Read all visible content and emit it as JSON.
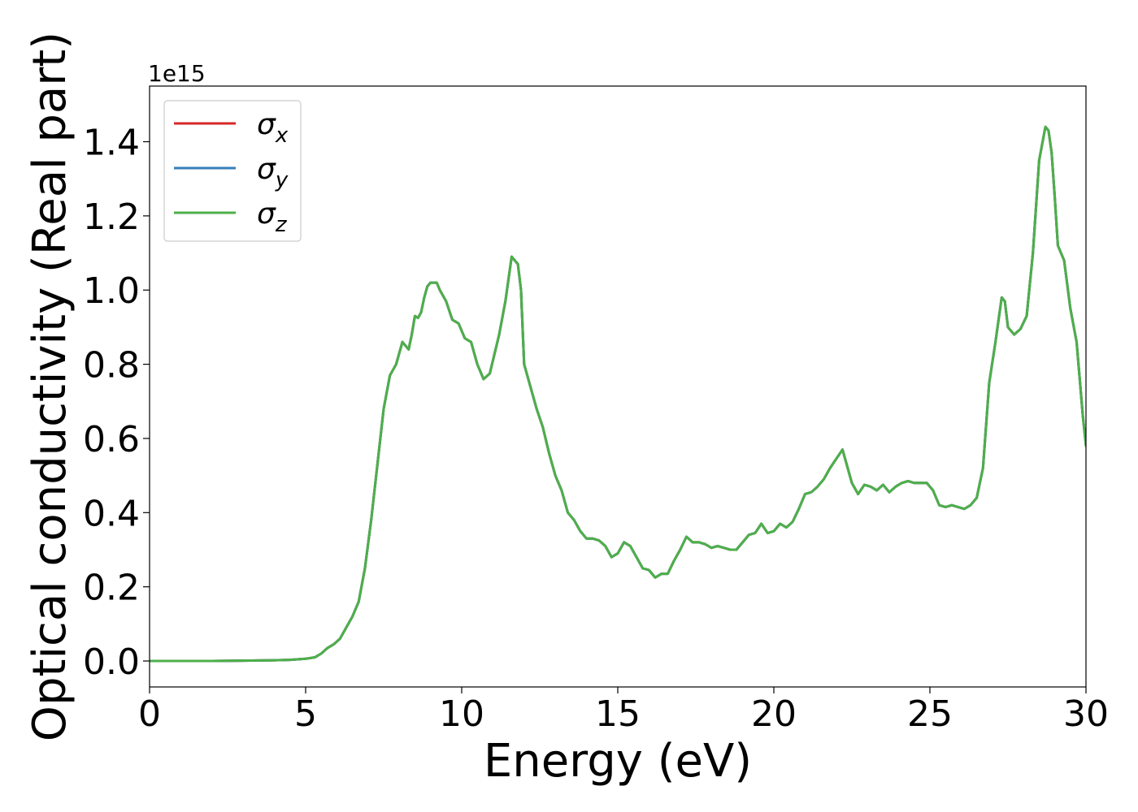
{
  "chart_data": {
    "type": "line",
    "title": "",
    "xlabel": "Energy (eV)",
    "ylabel": "Optical conductivity (Real part)",
    "y_offset_text": "1e15",
    "xlim": [
      0,
      30
    ],
    "ylim": [
      -0.07,
      1.55
    ],
    "xticks": [
      0,
      5,
      10,
      15,
      20,
      25,
      30
    ],
    "yticks": [
      0.0,
      0.2,
      0.4,
      0.6,
      0.8,
      1.0,
      1.2,
      1.4
    ],
    "x_tick_labels": [
      "0",
      "5",
      "10",
      "15",
      "20",
      "25",
      "30"
    ],
    "y_tick_labels": [
      "0.0",
      "0.2",
      "0.4",
      "0.6",
      "0.8",
      "1.0",
      "1.2",
      "1.4"
    ],
    "grid": false,
    "legend": {
      "position": "upper left",
      "entries": [
        {
          "symbol": "σ",
          "sub": "x",
          "color": "#d62728"
        },
        {
          "symbol": "σ",
          "sub": "y",
          "color": "#377eb8"
        },
        {
          "symbol": "σ",
          "sub": "z",
          "color": "#4daf4a"
        }
      ]
    },
    "x": [
      0,
      1,
      2,
      3,
      4,
      4.5,
      5,
      5.3,
      5.5,
      5.7,
      5.9,
      6.1,
      6.3,
      6.5,
      6.7,
      6.9,
      7.1,
      7.3,
      7.5,
      7.7,
      7.9,
      8.1,
      8.3,
      8.4,
      8.5,
      8.6,
      8.7,
      8.8,
      8.9,
      9.0,
      9.1,
      9.2,
      9.3,
      9.5,
      9.7,
      9.9,
      10.1,
      10.3,
      10.5,
      10.7,
      10.9,
      11.0,
      11.2,
      11.4,
      11.6,
      11.8,
      11.9,
      12.0,
      12.2,
      12.4,
      12.6,
      12.8,
      13.0,
      13.2,
      13.4,
      13.6,
      13.8,
      14.0,
      14.2,
      14.4,
      14.6,
      14.8,
      15.0,
      15.2,
      15.4,
      15.6,
      15.8,
      16.0,
      16.2,
      16.4,
      16.6,
      16.8,
      17.0,
      17.2,
      17.4,
      17.6,
      17.8,
      18.0,
      18.2,
      18.4,
      18.6,
      18.8,
      19.0,
      19.2,
      19.4,
      19.6,
      19.8,
      20.0,
      20.2,
      20.4,
      20.6,
      20.8,
      21.0,
      21.2,
      21.4,
      21.6,
      21.8,
      22.0,
      22.2,
      22.3,
      22.4,
      22.5,
      22.7,
      22.9,
      23.1,
      23.3,
      23.5,
      23.7,
      23.9,
      24.1,
      24.3,
      24.5,
      24.7,
      24.9,
      25.1,
      25.3,
      25.5,
      25.7,
      25.9,
      26.1,
      26.3,
      26.5,
      26.7,
      26.9,
      27.1,
      27.3,
      27.4,
      27.5,
      27.7,
      27.9,
      28.1,
      28.3,
      28.5,
      28.7,
      28.8,
      28.9,
      29.0,
      29.1,
      29.3,
      29.5,
      29.7,
      29.9,
      30.0
    ],
    "series": [
      {
        "name": "σ_x",
        "color": "#d62728",
        "values": [
          0,
          0,
          0,
          0.001,
          0.002,
          0.003,
          0.006,
          0.01,
          0.02,
          0.035,
          0.045,
          0.06,
          0.09,
          0.12,
          0.16,
          0.25,
          0.38,
          0.53,
          0.68,
          0.77,
          0.8,
          0.86,
          0.84,
          0.88,
          0.93,
          0.925,
          0.94,
          0.98,
          1.01,
          1.02,
          1.02,
          1.02,
          1.0,
          0.97,
          0.92,
          0.91,
          0.87,
          0.86,
          0.8,
          0.76,
          0.775,
          0.81,
          0.88,
          0.97,
          1.09,
          1.07,
          1.0,
          0.8,
          0.74,
          0.68,
          0.63,
          0.56,
          0.5,
          0.46,
          0.4,
          0.38,
          0.35,
          0.33,
          0.33,
          0.325,
          0.31,
          0.28,
          0.29,
          0.32,
          0.31,
          0.28,
          0.25,
          0.245,
          0.225,
          0.235,
          0.235,
          0.27,
          0.3,
          0.335,
          0.32,
          0.32,
          0.315,
          0.305,
          0.31,
          0.305,
          0.3,
          0.3,
          0.32,
          0.34,
          0.345,
          0.37,
          0.345,
          0.35,
          0.37,
          0.36,
          0.375,
          0.41,
          0.45,
          0.455,
          0.47,
          0.49,
          0.52,
          0.545,
          0.57,
          0.54,
          0.51,
          0.48,
          0.45,
          0.475,
          0.47,
          0.46,
          0.475,
          0.455,
          0.47,
          0.48,
          0.485,
          0.48,
          0.48,
          0.48,
          0.46,
          0.42,
          0.415,
          0.42,
          0.415,
          0.41,
          0.42,
          0.44,
          0.52,
          0.75,
          0.86,
          0.98,
          0.97,
          0.9,
          0.88,
          0.895,
          0.93,
          1.1,
          1.35,
          1.44,
          1.43,
          1.37,
          1.25,
          1.12,
          1.08,
          0.95,
          0.86,
          0.66,
          0.58
        ]
      },
      {
        "name": "σ_y",
        "color": "#377eb8",
        "values": [
          0,
          0,
          0,
          0.001,
          0.002,
          0.003,
          0.006,
          0.01,
          0.02,
          0.035,
          0.045,
          0.06,
          0.09,
          0.12,
          0.16,
          0.25,
          0.38,
          0.53,
          0.68,
          0.77,
          0.8,
          0.86,
          0.84,
          0.88,
          0.93,
          0.925,
          0.94,
          0.98,
          1.01,
          1.02,
          1.02,
          1.02,
          1.0,
          0.97,
          0.92,
          0.91,
          0.87,
          0.86,
          0.8,
          0.76,
          0.775,
          0.81,
          0.88,
          0.97,
          1.09,
          1.07,
          1.0,
          0.8,
          0.74,
          0.68,
          0.63,
          0.56,
          0.5,
          0.46,
          0.4,
          0.38,
          0.35,
          0.33,
          0.33,
          0.325,
          0.31,
          0.28,
          0.29,
          0.32,
          0.31,
          0.28,
          0.25,
          0.245,
          0.225,
          0.235,
          0.235,
          0.27,
          0.3,
          0.335,
          0.32,
          0.32,
          0.315,
          0.305,
          0.31,
          0.305,
          0.3,
          0.3,
          0.32,
          0.34,
          0.345,
          0.37,
          0.345,
          0.35,
          0.37,
          0.36,
          0.375,
          0.41,
          0.45,
          0.455,
          0.47,
          0.49,
          0.52,
          0.545,
          0.57,
          0.54,
          0.51,
          0.48,
          0.45,
          0.475,
          0.47,
          0.46,
          0.475,
          0.455,
          0.47,
          0.48,
          0.485,
          0.48,
          0.48,
          0.48,
          0.46,
          0.42,
          0.415,
          0.42,
          0.415,
          0.41,
          0.42,
          0.44,
          0.52,
          0.75,
          0.86,
          0.98,
          0.97,
          0.9,
          0.88,
          0.895,
          0.93,
          1.1,
          1.35,
          1.44,
          1.43,
          1.37,
          1.25,
          1.12,
          1.08,
          0.95,
          0.86,
          0.66,
          0.58
        ]
      },
      {
        "name": "σ_z",
        "color": "#4daf4a",
        "values": [
          0,
          0,
          0,
          0.001,
          0.002,
          0.003,
          0.006,
          0.01,
          0.02,
          0.035,
          0.045,
          0.06,
          0.09,
          0.12,
          0.16,
          0.25,
          0.38,
          0.53,
          0.68,
          0.77,
          0.8,
          0.86,
          0.84,
          0.88,
          0.93,
          0.925,
          0.94,
          0.98,
          1.01,
          1.02,
          1.02,
          1.02,
          1.0,
          0.97,
          0.92,
          0.91,
          0.87,
          0.86,
          0.8,
          0.76,
          0.775,
          0.81,
          0.88,
          0.97,
          1.09,
          1.07,
          1.0,
          0.8,
          0.74,
          0.68,
          0.63,
          0.56,
          0.5,
          0.46,
          0.4,
          0.38,
          0.35,
          0.33,
          0.33,
          0.325,
          0.31,
          0.28,
          0.29,
          0.32,
          0.31,
          0.28,
          0.25,
          0.245,
          0.225,
          0.235,
          0.235,
          0.27,
          0.3,
          0.335,
          0.32,
          0.32,
          0.315,
          0.305,
          0.31,
          0.305,
          0.3,
          0.3,
          0.32,
          0.34,
          0.345,
          0.37,
          0.345,
          0.35,
          0.37,
          0.36,
          0.375,
          0.41,
          0.45,
          0.455,
          0.47,
          0.49,
          0.52,
          0.545,
          0.57,
          0.54,
          0.51,
          0.48,
          0.45,
          0.475,
          0.47,
          0.46,
          0.475,
          0.455,
          0.47,
          0.48,
          0.485,
          0.48,
          0.48,
          0.48,
          0.46,
          0.42,
          0.415,
          0.42,
          0.415,
          0.41,
          0.42,
          0.44,
          0.52,
          0.75,
          0.86,
          0.98,
          0.97,
          0.9,
          0.88,
          0.895,
          0.93,
          1.1,
          1.35,
          1.44,
          1.43,
          1.37,
          1.25,
          1.12,
          1.08,
          0.95,
          0.86,
          0.66,
          0.58
        ]
      }
    ]
  }
}
